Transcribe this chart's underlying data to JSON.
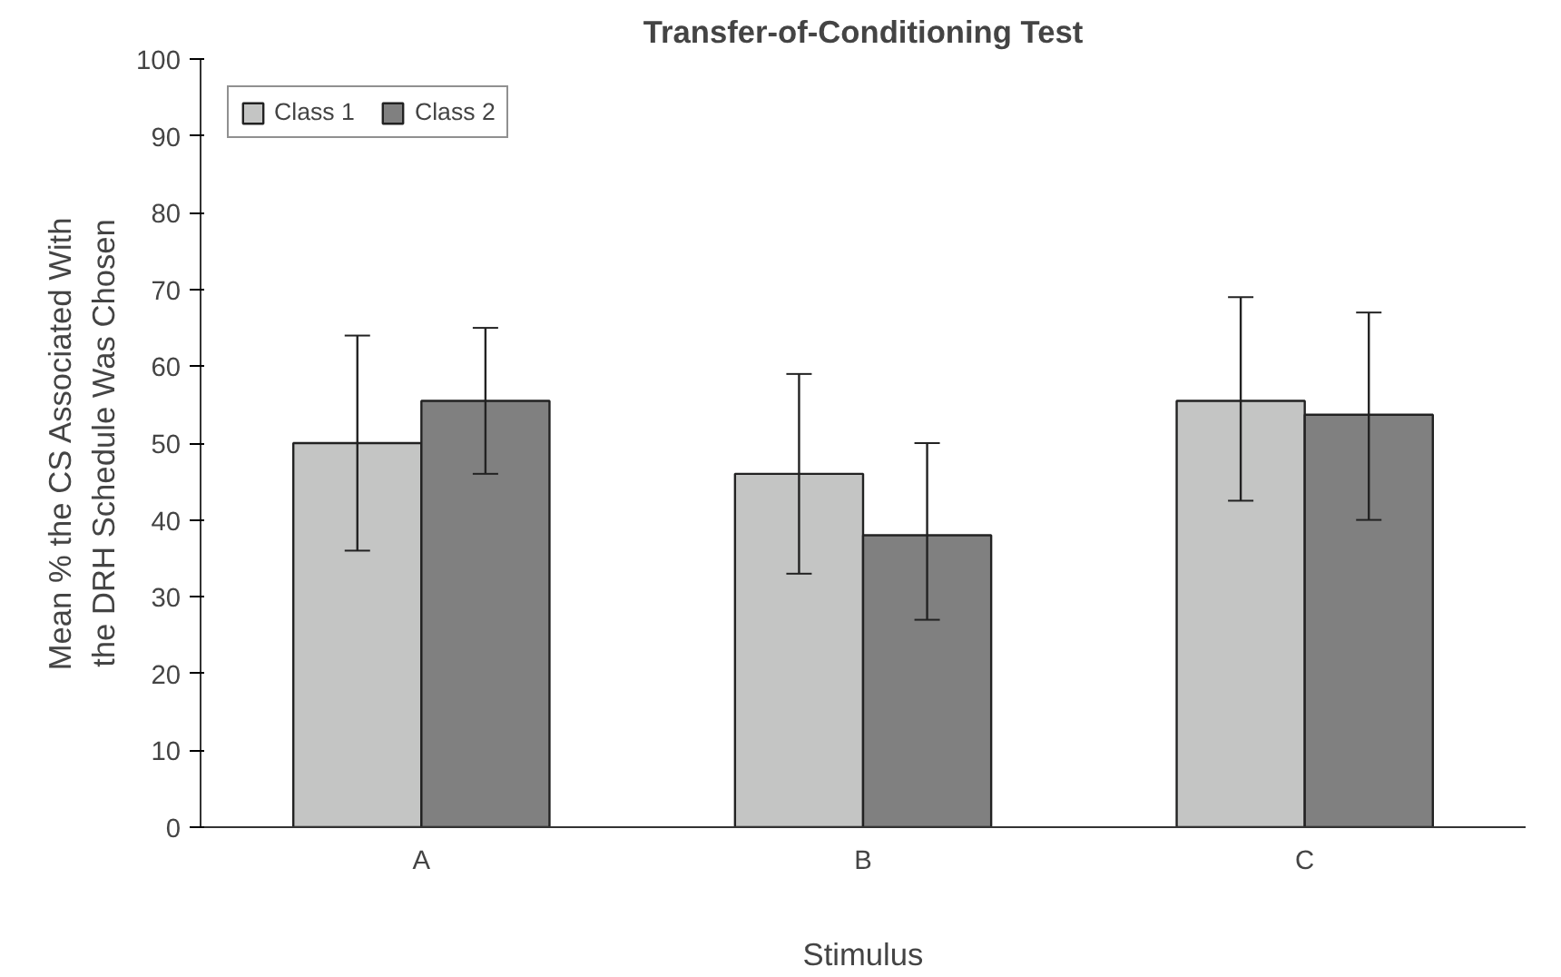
{
  "chart_data": {
    "type": "bar",
    "title": "Transfer-of-Conditioning Test",
    "xlabel": "Stimulus",
    "ylabel": "Mean % the CS Associated With the DRH Schedule Was Chosen",
    "categories": [
      "A",
      "B",
      "C"
    ],
    "series": [
      {
        "name": "Class 1",
        "color": "#c4c5c4",
        "values": [
          50,
          46,
          55.5
        ],
        "errors": [
          [
            36,
            64
          ],
          [
            33,
            59
          ],
          [
            42.5,
            69
          ]
        ]
      },
      {
        "name": "Class 2",
        "color": "#808080",
        "values": [
          55.5,
          38,
          53.7
        ],
        "errors": [
          [
            46,
            65
          ],
          [
            27,
            50
          ],
          [
            40,
            67
          ]
        ]
      }
    ],
    "ylim": [
      0,
      100
    ],
    "yticks": [
      0,
      10,
      20,
      30,
      40,
      50,
      60,
      70,
      80,
      90,
      100
    ],
    "grid": false,
    "legend": "top left"
  }
}
